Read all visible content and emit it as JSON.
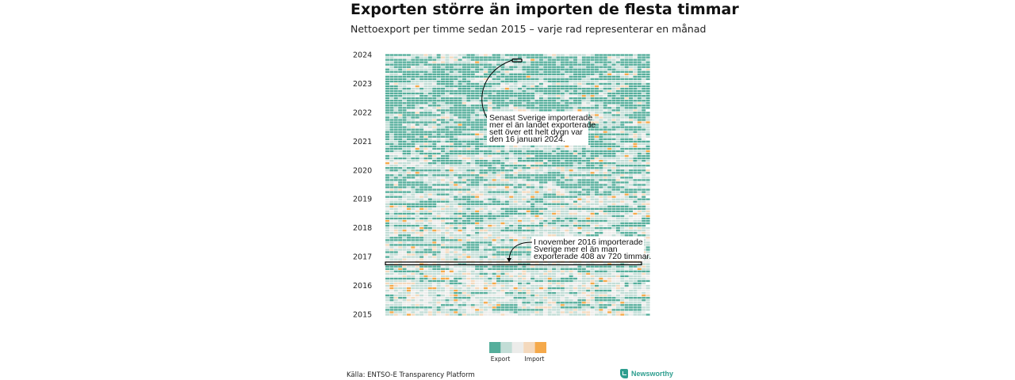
{
  "title": "Exporten större än importen de flesta timmar",
  "subtitle": "Nettoexport per timme sedan 2015 – varje rad representerar en månad",
  "source": "Källa: ENTSO-E Transparency Platform",
  "brand": "Newsworthy",
  "chart_data": {
    "type": "heatmap",
    "rows": "months",
    "row_start": "2015-01",
    "row_end": "2024-01",
    "columns": "hours of month",
    "y_ticks": [
      "2015",
      "2016",
      "2017",
      "2018",
      "2019",
      "2020",
      "2021",
      "2022",
      "2023",
      "2024"
    ],
    "legend": {
      "labels": [
        "Export",
        "Import"
      ],
      "colors": [
        "#55ae9b",
        "#c2ddd6",
        "#ececea",
        "#f4d9bd",
        "#f5a94a"
      ]
    },
    "annotations": [
      {
        "text_lines": [
          "Senast Sverige importerade",
          "mer el än landet exporterade",
          "sett över ett helt dygn var",
          "den 16 januari 2024."
        ],
        "date": "2024-01-16"
      },
      {
        "text_lines": [
          "I november 2016 importerade",
          "Sverige mer el än man",
          "exporterade 408 av 720 timmar."
        ],
        "month": "2016-11",
        "import_hours": 408,
        "total_hours": 720
      }
    ]
  }
}
